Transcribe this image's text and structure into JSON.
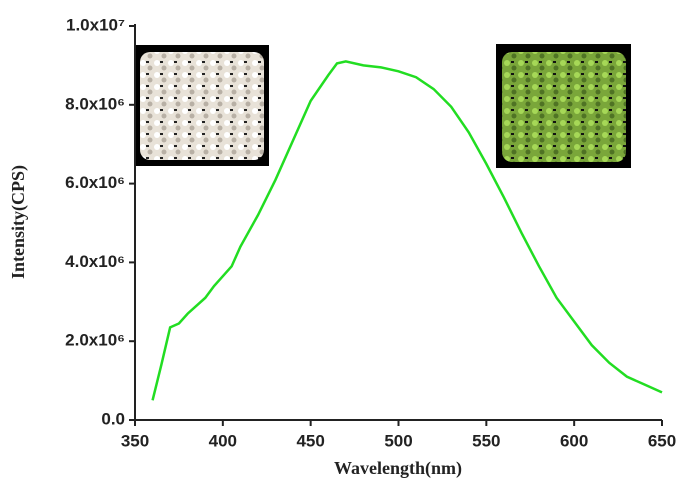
{
  "chart_data": {
    "type": "line",
    "x_label": "Wavelength(nm)",
    "y_label": "Intensity(CPS)",
    "x": [
      360,
      365,
      370,
      375,
      380,
      390,
      395,
      400,
      405,
      410,
      420,
      430,
      440,
      450,
      460,
      465,
      470,
      480,
      490,
      500,
      510,
      520,
      530,
      540,
      550,
      560,
      570,
      580,
      590,
      600,
      610,
      620,
      630,
      640,
      650
    ],
    "series": [
      {
        "color": "#22dd22",
        "values": [
          500000,
          1400000,
          2350000,
          2450000,
          2700000,
          3100000,
          3400000,
          3650000,
          3900000,
          4400000,
          5200000,
          6100000,
          7100000,
          8100000,
          8750000,
          9050000,
          9100000,
          9000000,
          8950000,
          8850000,
          8700000,
          8400000,
          7950000,
          7300000,
          6500000,
          5650000,
          4750000,
          3900000,
          3100000,
          2500000,
          1900000,
          1450000,
          1100000,
          900000,
          700000
        ]
      }
    ],
    "xlim": [
      350,
      650
    ],
    "xticks": [
      350,
      400,
      450,
      500,
      550,
      600,
      650
    ],
    "ylim": [
      0,
      10000000
    ],
    "yticks": [
      {
        "value": 0,
        "label": "0.0"
      },
      {
        "value": 2000000,
        "label": "2.0x10⁶"
      },
      {
        "value": 4000000,
        "label": "4.0x10⁶"
      },
      {
        "value": 6000000,
        "label": "6.0x10⁶"
      },
      {
        "value": 8000000,
        "label": "8.0x10⁶"
      },
      {
        "value": 10000000,
        "label": "1.0x10⁷"
      }
    ]
  }
}
